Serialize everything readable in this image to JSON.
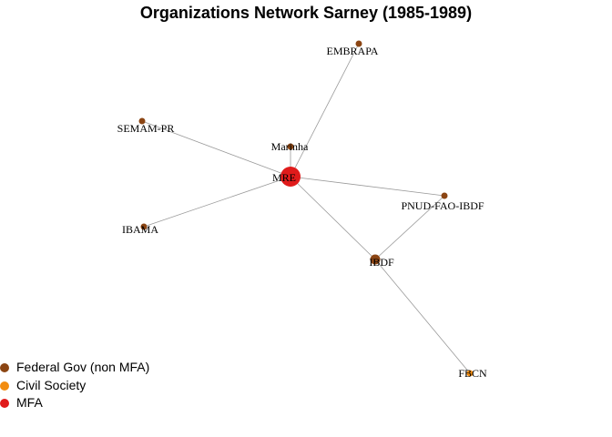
{
  "title": "Organizations Network Sarney (1985-1989)",
  "colors": {
    "federal_gov": "#8B4513",
    "civil_society": "#F28C0F",
    "mfa": "#E01B1B",
    "edge": "#9a9a9a"
  },
  "legend": [
    {
      "label": "Federal Gov (non MFA)",
      "color": "#8B4513"
    },
    {
      "label": "Civil Society",
      "color": "#F28C0F"
    },
    {
      "label": "MFA",
      "color": "#E01B1B"
    }
  ],
  "nodes": [
    {
      "id": "MRE",
      "label": "MRE",
      "group": "mfa"
    },
    {
      "id": "EMBRAPA",
      "label": "EMBRAPA",
      "group": "federal_gov"
    },
    {
      "id": "SEMAM-PR",
      "label": "SEMAM-PR",
      "group": "federal_gov"
    },
    {
      "id": "Marinha",
      "label": "Marinha",
      "group": "federal_gov"
    },
    {
      "id": "PNUD-FAO-IBDF",
      "label": "PNUD-FAO-IBDF",
      "group": "federal_gov"
    },
    {
      "id": "IBAMA",
      "label": "IBAMA",
      "group": "federal_gov"
    },
    {
      "id": "IBDF",
      "label": "IBDF",
      "group": "federal_gov"
    },
    {
      "id": "FBCN",
      "label": "FBCN",
      "group": "civil_society"
    }
  ],
  "edges": [
    {
      "from": "MRE",
      "to": "EMBRAPA"
    },
    {
      "from": "MRE",
      "to": "SEMAM-PR"
    },
    {
      "from": "MRE",
      "to": "Marinha"
    },
    {
      "from": "MRE",
      "to": "PNUD-FAO-IBDF"
    },
    {
      "from": "MRE",
      "to": "IBAMA"
    },
    {
      "from": "MRE",
      "to": "IBDF"
    },
    {
      "from": "IBDF",
      "to": "PNUD-FAO-IBDF"
    },
    {
      "from": "IBDF",
      "to": "FBCN"
    }
  ]
}
